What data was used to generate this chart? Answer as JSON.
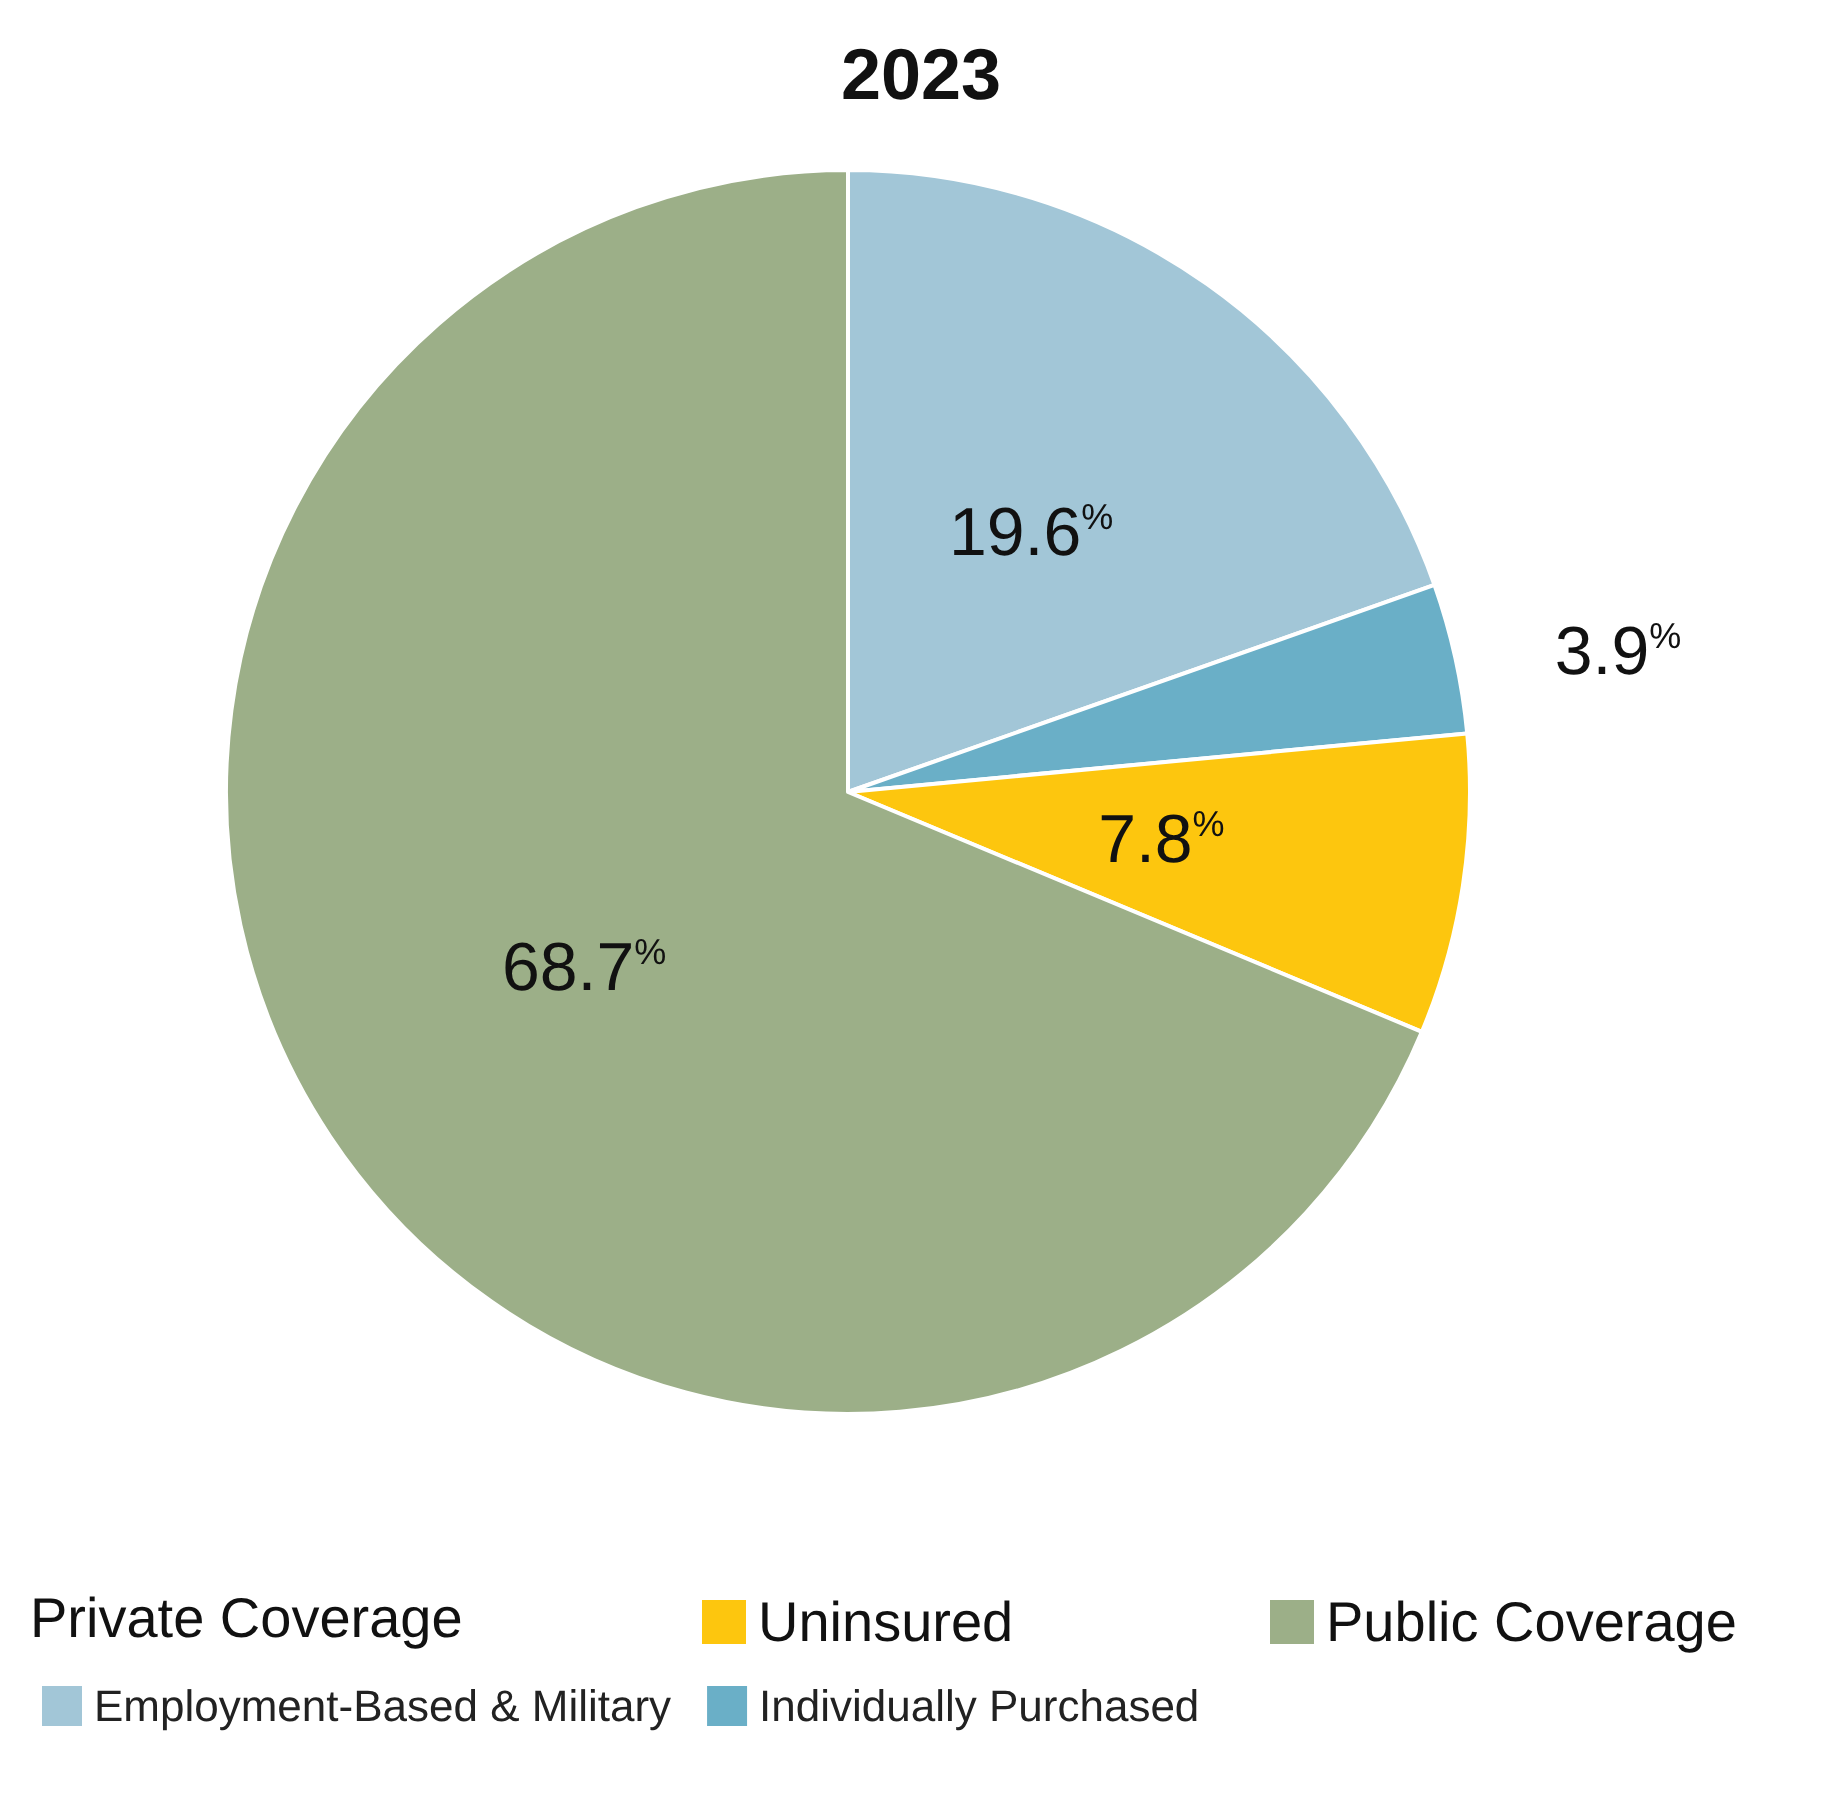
{
  "chart_data": {
    "type": "pie",
    "title": "2023",
    "legend_title": "Private Coverage",
    "categories": [
      "Employment-Based & Military",
      "Individually Purchased",
      "Uninsured",
      "Public Coverage"
    ],
    "values": [
      19.6,
      3.9,
      7.8,
      68.7
    ],
    "colors": [
      "#a2c6d7",
      "#6aafc7",
      "#fdc60e",
      "#9caf88"
    ],
    "value_labels": [
      "19.6$^{%}$",
      "3.9$^{%}$",
      "7.8$^{%}$",
      "68.7$^{%}$"
    ],
    "legend": "bottom"
  }
}
